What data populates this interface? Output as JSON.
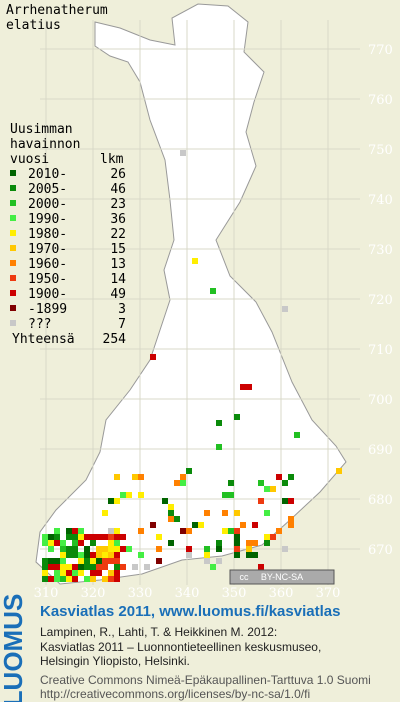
{
  "species": [
    "Arrhenatherum",
    "elatius"
  ],
  "legend": {
    "heading": [
      "Uusimman",
      "havainnon",
      "vuosi"
    ],
    "count_header": "lkm",
    "items": [
      {
        "label": "2010-",
        "count": 26,
        "color": "#006400"
      },
      {
        "label": "2005-",
        "count": 46,
        "color": "#0a8a0a"
      },
      {
        "label": "2000-",
        "count": 23,
        "color": "#22c022"
      },
      {
        "label": "1990-",
        "count": 36,
        "color": "#44ee44"
      },
      {
        "label": "1980-",
        "count": 22,
        "color": "#ffee00"
      },
      {
        "label": "1970-",
        "count": 15,
        "color": "#ffc800"
      },
      {
        "label": "1960-",
        "count": 13,
        "color": "#ff8000"
      },
      {
        "label": "1950-",
        "count": 14,
        "color": "#ee3a10"
      },
      {
        "label": "1900-",
        "count": 49,
        "color": "#cc0000"
      },
      {
        "label": "-1899",
        "count": 3,
        "color": "#800000"
      },
      {
        "label": "???",
        "count": 7,
        "color": "#c8c8c8"
      }
    ],
    "total_label": "Yhteensä",
    "total": 254
  },
  "y_grid_labels": [
    770,
    760,
    750,
    740,
    730,
    720,
    710,
    700,
    690,
    680,
    670
  ],
  "x_grid_labels": [
    310,
    320,
    330,
    340,
    350,
    360,
    370
  ],
  "cc_badge": [
    "cc",
    "BY-NC-SA"
  ],
  "footer": {
    "logo": "LUOMUS",
    "headline": "Kasviatlas 2011, www.luomus.fi/kasviatlas",
    "citation": [
      "Lampinen, R., Lahti, T. & Heikkinen M. 2012:",
      "Kasviatlas 2011 – Luonnontieteellinen keskusmuseo,",
      "Helsingin Yliopisto, Helsinki."
    ],
    "license": [
      "Creative Commons Nimeä-Epäkaupallinen-Tarttuva 1.0 Suomi",
      "http://creativecommons.org/licenses/by-nc-sa/1.0/fi"
    ]
  }
}
